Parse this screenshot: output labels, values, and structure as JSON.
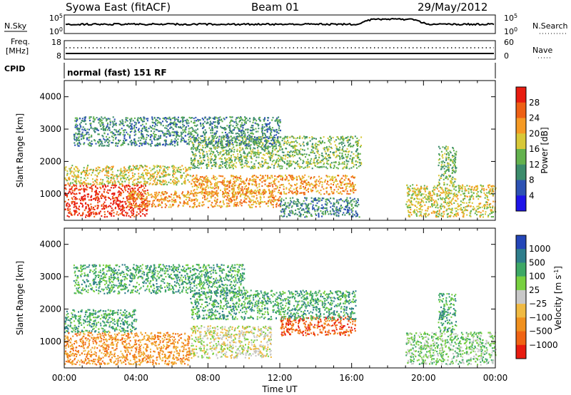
{
  "header": {
    "title": "Syowa East (fitACF)",
    "beam": "Beam 01",
    "date": "29/May/2012"
  },
  "strip_panels": {
    "nsky_label": "N.Sky",
    "nsky_top": "10^5",
    "nsky_bottom": "10^0",
    "nsearch_label": "N.Search",
    "nsearch_top": "10^5",
    "nsearch_bottom": "10^0",
    "freq_label_1": "Freq.",
    "freq_label_2": "[MHz]",
    "freq_top": "18",
    "freq_bottom": "8",
    "nave_label": "Nave",
    "nave_top": "60",
    "nave_bottom": "0",
    "cpid_label": "CPID",
    "cpid_value": "normal (fast) 151 RF"
  },
  "chart_data": [
    {
      "type": "heatmap",
      "name": "Power",
      "ylabel": "Slant Range [km]",
      "ylim": [
        180,
        4500
      ],
      "yticks": [
        1000,
        2000,
        3000,
        4000
      ],
      "xlim_hours": [
        0,
        24
      ],
      "colorbar_label": "Power [dB]",
      "colorbar_ticks": [
        4,
        8,
        12,
        16,
        20,
        24,
        28
      ],
      "colorbar_range": [
        0,
        32
      ],
      "colorbar_colors": [
        "#1e14e8",
        "#2d52b4",
        "#3c8c6c",
        "#63b24e",
        "#d8c838",
        "#f59a24",
        "#ee6014",
        "#e81c10"
      ],
      "echo_regions": [
        {
          "t0": 0.0,
          "t1": 4.6,
          "r0": 300,
          "r1": 1300,
          "level": 28
        },
        {
          "t0": 0.0,
          "t1": 7.0,
          "r0": 1300,
          "r1": 1900,
          "level": 16
        },
        {
          "t0": 3.5,
          "t1": 12.0,
          "r0": 600,
          "r1": 1100,
          "level": 20
        },
        {
          "t0": 7.0,
          "t1": 16.2,
          "r0": 1000,
          "r1": 1600,
          "level": 22
        },
        {
          "t0": 7.0,
          "t1": 16.5,
          "r0": 1800,
          "r1": 2800,
          "level": 12
        },
        {
          "t0": 12.0,
          "t1": 16.4,
          "r0": 300,
          "r1": 900,
          "level": 10
        },
        {
          "t0": 0.5,
          "t1": 12.0,
          "r0": 2500,
          "r1": 3400,
          "level": 8
        },
        {
          "t0": 19.0,
          "t1": 24.0,
          "r0": 300,
          "r1": 1300,
          "level": 16
        },
        {
          "t0": 20.8,
          "t1": 21.8,
          "r0": 1300,
          "r1": 2500,
          "level": 14
        }
      ]
    },
    {
      "type": "heatmap",
      "name": "Velocity",
      "ylabel": "Slant Range [km]",
      "ylim": [
        180,
        4500
      ],
      "yticks": [
        1000,
        2000,
        3000,
        4000
      ],
      "xlim_hours": [
        0,
        24
      ],
      "colorbar_label": "Velocity [m s^-1]",
      "colorbar_ticks": [
        "1000",
        "500",
        "100",
        "25",
        "−25",
        "−100",
        "−500",
        "−1000"
      ],
      "colorbar_colors": [
        "#2446b8",
        "#2f7e8c",
        "#3ea866",
        "#78d040",
        "#c8c8c8",
        "#f0ba42",
        "#f0901e",
        "#f06414",
        "#e81c10"
      ],
      "echo_regions": [
        {
          "t0": 0.0,
          "t1": 7.0,
          "r0": 300,
          "r1": 1300,
          "level": "-100"
        },
        {
          "t0": 0.0,
          "t1": 4.0,
          "r0": 1300,
          "r1": 2000,
          "level": "100"
        },
        {
          "t0": 7.0,
          "t1": 11.5,
          "r0": 500,
          "r1": 1500,
          "level": "0"
        },
        {
          "t0": 12.0,
          "t1": 16.2,
          "r0": 1200,
          "r1": 1800,
          "level": "-500"
        },
        {
          "t0": 7.0,
          "t1": 16.2,
          "r0": 1700,
          "r1": 2600,
          "level": "100"
        },
        {
          "t0": 0.5,
          "t1": 10.0,
          "r0": 2500,
          "r1": 3400,
          "level": "100"
        },
        {
          "t0": 19.0,
          "t1": 24.0,
          "r0": 300,
          "r1": 1300,
          "level": "25"
        },
        {
          "t0": 20.8,
          "t1": 21.8,
          "r0": 1300,
          "r1": 2500,
          "level": "100"
        }
      ]
    }
  ],
  "x_axis": {
    "ticks": [
      "00:00",
      "04:00",
      "08:00",
      "12:00",
      "16:00",
      "20:00",
      "00:00"
    ],
    "label": "Time UT"
  }
}
